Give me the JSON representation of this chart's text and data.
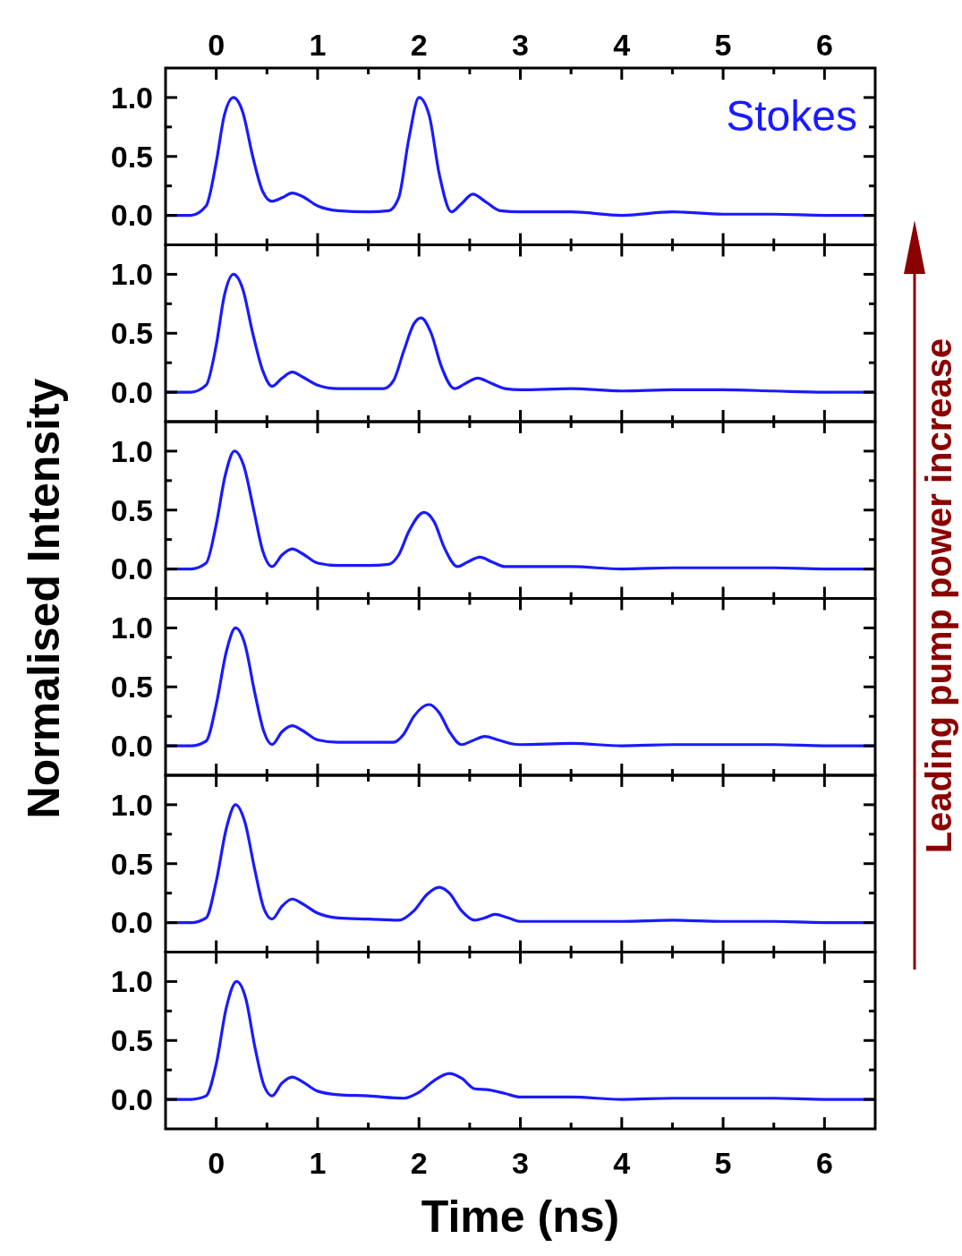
{
  "chart_data": [
    {
      "type": "line",
      "ylabel": "Normalised Intensity",
      "legend": "top right",
      "annotations": [
        "Leading pump power increase"
      ],
      "xlim": [
        -0.5,
        6.5
      ],
      "xticks": [
        0,
        {
          "value": 0.5,
          "label": null
        },
        1,
        {
          "value": 1.5,
          "label": null
        },
        2,
        {
          "value": 2.5,
          "label": null
        },
        3,
        {
          "value": 3.5,
          "label": null
        },
        4,
        {
          "value": 4.5,
          "label": null
        },
        5,
        {
          "value": 5.5,
          "label": null
        },
        6
      ],
      "x2lim": [
        -0.5,
        6.5
      ],
      "x2ticks": [
        0,
        1,
        2,
        3,
        4,
        5,
        6
      ],
      "ylim": [
        -0.25,
        1.25
      ],
      "yticks": [
        {
          "value": 0,
          "label": "0.0"
        },
        {
          "value": 0.25,
          "label": null
        },
        {
          "value": 0.5,
          "label": "0.5"
        },
        {
          "value": 0.75,
          "label": null
        },
        {
          "value": 1,
          "label": "1.0"
        }
      ],
      "tick_labels": "y",
      "series": [
        {
          "name": "Stokes",
          "color": "#1a1aff",
          "x": [
            -0.5,
            -0.25,
            -0.1,
            0,
            0.08,
            0.17,
            0.26,
            0.36,
            0.46,
            0.55,
            0.65,
            0.75,
            0.85,
            1.0,
            1.2,
            1.5,
            1.7,
            1.8,
            1.9,
            2.0,
            2.1,
            2.2,
            2.32,
            2.42,
            2.53,
            2.65,
            2.8,
            3.0,
            3.5,
            4.0,
            4.5,
            5.0,
            5.5,
            6.0,
            6.5
          ],
          "values": [
            0,
            0,
            0.08,
            0.45,
            0.85,
            1.0,
            0.88,
            0.5,
            0.2,
            0.12,
            0.15,
            0.19,
            0.16,
            0.08,
            0.04,
            0.03,
            0.04,
            0.15,
            0.65,
            1.0,
            0.85,
            0.35,
            0.03,
            0.1,
            0.18,
            0.12,
            0.04,
            0.03,
            0.03,
            0.0,
            0.03,
            0.01,
            0.01,
            0.0,
            0.0
          ]
        }
      ]
    },
    {
      "type": "line",
      "xlim": [
        -0.5,
        6.5
      ],
      "xticks": [
        0,
        {
          "value": 0.5,
          "label": null
        },
        1,
        {
          "value": 1.5,
          "label": null
        },
        2,
        {
          "value": 2.5,
          "label": null
        },
        3,
        {
          "value": 3.5,
          "label": null
        },
        4,
        {
          "value": 4.5,
          "label": null
        },
        5,
        {
          "value": 5.5,
          "label": null
        },
        6
      ],
      "ylim": [
        -0.25,
        1.25
      ],
      "yticks": [
        {
          "value": 0,
          "label": "0.0"
        },
        {
          "value": 0.25,
          "label": null
        },
        {
          "value": 0.5,
          "label": "0.5"
        },
        {
          "value": 0.75,
          "label": null
        },
        {
          "value": 1,
          "label": "1.0"
        }
      ],
      "tick_labels": "y",
      "series": [
        {
          "color": "#1a1aff",
          "x": [
            -0.5,
            -0.25,
            -0.1,
            0,
            0.08,
            0.17,
            0.26,
            0.36,
            0.46,
            0.55,
            0.65,
            0.75,
            0.85,
            1.0,
            1.2,
            1.5,
            1.65,
            1.75,
            1.85,
            1.95,
            2.02,
            2.12,
            2.22,
            2.35,
            2.45,
            2.58,
            2.7,
            2.85,
            3.0,
            3.5,
            4.0,
            4.5,
            5.0,
            5.5,
            6.0,
            6.5
          ],
          "values": [
            0,
            0,
            0.06,
            0.4,
            0.82,
            1.0,
            0.88,
            0.5,
            0.18,
            0.05,
            0.12,
            0.17,
            0.13,
            0.06,
            0.03,
            0.03,
            0.03,
            0.1,
            0.35,
            0.58,
            0.63,
            0.5,
            0.22,
            0.03,
            0.07,
            0.12,
            0.08,
            0.03,
            0.02,
            0.03,
            0.01,
            0.02,
            0.02,
            0.01,
            0.0,
            0.0
          ]
        }
      ]
    },
    {
      "type": "line",
      "xlim": [
        -0.5,
        6.5
      ],
      "xticks": [
        0,
        {
          "value": 0.5,
          "label": null
        },
        1,
        {
          "value": 1.5,
          "label": null
        },
        2,
        {
          "value": 2.5,
          "label": null
        },
        3,
        {
          "value": 3.5,
          "label": null
        },
        4,
        {
          "value": 4.5,
          "label": null
        },
        5,
        {
          "value": 5.5,
          "label": null
        },
        6
      ],
      "ylim": [
        -0.25,
        1.25
      ],
      "yticks": [
        {
          "value": 0,
          "label": "0.0"
        },
        {
          "value": 0.25,
          "label": null
        },
        {
          "value": 0.5,
          "label": "0.5"
        },
        {
          "value": 0.75,
          "label": null
        },
        {
          "value": 1,
          "label": "1.0"
        }
      ],
      "tick_labels": "y",
      "series": [
        {
          "color": "#1a1aff",
          "x": [
            -0.5,
            -0.25,
            -0.1,
            0,
            0.09,
            0.18,
            0.27,
            0.37,
            0.46,
            0.55,
            0.65,
            0.75,
            0.85,
            1.0,
            1.2,
            1.5,
            1.7,
            1.8,
            1.9,
            2.05,
            2.15,
            2.25,
            2.38,
            2.48,
            2.6,
            2.72,
            2.85,
            3.0,
            3.5,
            4.0,
            4.5,
            5.0,
            5.5,
            6.0,
            6.5
          ],
          "values": [
            0,
            0,
            0.05,
            0.38,
            0.8,
            1.0,
            0.88,
            0.5,
            0.15,
            0.02,
            0.12,
            0.17,
            0.13,
            0.05,
            0.03,
            0.03,
            0.04,
            0.12,
            0.32,
            0.48,
            0.4,
            0.18,
            0.02,
            0.06,
            0.1,
            0.06,
            0.02,
            0.02,
            0.02,
            0.0,
            0.01,
            0.01,
            0.01,
            0.0,
            0.0
          ]
        }
      ]
    },
    {
      "type": "line",
      "xlim": [
        -0.5,
        6.5
      ],
      "xticks": [
        0,
        {
          "value": 0.5,
          "label": null
        },
        1,
        {
          "value": 1.5,
          "label": null
        },
        2,
        {
          "value": 2.5,
          "label": null
        },
        3,
        {
          "value": 3.5,
          "label": null
        },
        4,
        {
          "value": 4.5,
          "label": null
        },
        5,
        {
          "value": 5.5,
          "label": null
        },
        6
      ],
      "ylim": [
        -0.25,
        1.25
      ],
      "yticks": [
        {
          "value": 0,
          "label": "0.0"
        },
        {
          "value": 0.25,
          "label": null
        },
        {
          "value": 0.5,
          "label": "0.5"
        },
        {
          "value": 0.75,
          "label": null
        },
        {
          "value": 1,
          "label": "1.0"
        }
      ],
      "tick_labels": "y",
      "series": [
        {
          "color": "#1a1aff",
          "x": [
            -0.5,
            -0.25,
            -0.1,
            0,
            0.1,
            0.19,
            0.28,
            0.38,
            0.47,
            0.55,
            0.65,
            0.75,
            0.85,
            1.0,
            1.2,
            1.5,
            1.75,
            1.85,
            1.95,
            2.1,
            2.2,
            2.3,
            2.42,
            2.52,
            2.65,
            2.78,
            2.9,
            3.0,
            3.5,
            4.0,
            4.5,
            5.0,
            5.5,
            6.0,
            6.5
          ],
          "values": [
            0,
            0,
            0.04,
            0.35,
            0.8,
            1.0,
            0.87,
            0.45,
            0.12,
            0.01,
            0.12,
            0.17,
            0.13,
            0.05,
            0.03,
            0.03,
            0.03,
            0.1,
            0.25,
            0.35,
            0.28,
            0.12,
            0.01,
            0.04,
            0.08,
            0.05,
            0.02,
            0.01,
            0.02,
            0.0,
            0.01,
            0.01,
            0.01,
            0.0,
            0.0
          ]
        }
      ]
    },
    {
      "type": "line",
      "xlim": [
        -0.5,
        6.5
      ],
      "xticks": [
        0,
        {
          "value": 0.5,
          "label": null
        },
        1,
        {
          "value": 1.5,
          "label": null
        },
        2,
        {
          "value": 2.5,
          "label": null
        },
        3,
        {
          "value": 3.5,
          "label": null
        },
        4,
        {
          "value": 4.5,
          "label": null
        },
        5,
        {
          "value": 5.5,
          "label": null
        },
        6
      ],
      "ylim": [
        -0.25,
        1.25
      ],
      "yticks": [
        {
          "value": 0,
          "label": "0.0"
        },
        {
          "value": 0.25,
          "label": null
        },
        {
          "value": 0.5,
          "label": "0.5"
        },
        {
          "value": 0.75,
          "label": null
        },
        {
          "value": 1,
          "label": "1.0"
        }
      ],
      "tick_labels": "y",
      "series": [
        {
          "color": "#1a1aff",
          "x": [
            -0.5,
            -0.25,
            -0.1,
            0,
            0.1,
            0.19,
            0.28,
            0.38,
            0.47,
            0.55,
            0.65,
            0.75,
            0.85,
            1.0,
            1.2,
            1.5,
            1.8,
            1.95,
            2.08,
            2.2,
            2.3,
            2.42,
            2.55,
            2.65,
            2.75,
            2.88,
            3.0,
            3.5,
            4.0,
            4.5,
            5.0,
            5.5,
            6.0,
            6.5
          ],
          "values": [
            0,
            0,
            0.04,
            0.35,
            0.8,
            1.0,
            0.86,
            0.45,
            0.12,
            0.03,
            0.14,
            0.2,
            0.16,
            0.08,
            0.04,
            0.03,
            0.02,
            0.1,
            0.24,
            0.3,
            0.25,
            0.1,
            0.02,
            0.04,
            0.07,
            0.04,
            0.01,
            0.01,
            0.01,
            0.02,
            0.01,
            0.01,
            0.0,
            0.0
          ]
        }
      ]
    },
    {
      "type": "line",
      "xlabel": "Time (ns)",
      "xlim": [
        -0.5,
        6.5
      ],
      "xticks": [
        0,
        {
          "value": 0.5,
          "label": null
        },
        1,
        {
          "value": 1.5,
          "label": null
        },
        2,
        {
          "value": 2.5,
          "label": null
        },
        3,
        {
          "value": 3.5,
          "label": null
        },
        4,
        {
          "value": 4.5,
          "label": null
        },
        5,
        {
          "value": 5.5,
          "label": null
        },
        6
      ],
      "ylim": [
        -0.25,
        1.25
      ],
      "yticks": [
        {
          "value": 0,
          "label": "0.0"
        },
        {
          "value": 0.25,
          "label": null
        },
        {
          "value": 0.5,
          "label": "0.5"
        },
        {
          "value": 0.75,
          "label": null
        },
        {
          "value": 1,
          "label": "1.0"
        }
      ],
      "series": [
        {
          "color": "#1a1aff",
          "x": [
            -0.5,
            -0.25,
            -0.1,
            0,
            0.1,
            0.2,
            0.29,
            0.38,
            0.47,
            0.55,
            0.65,
            0.75,
            0.85,
            1.0,
            1.2,
            1.5,
            1.85,
            2.0,
            2.15,
            2.3,
            2.42,
            2.55,
            2.7,
            2.85,
            3.0,
            3.5,
            4.0,
            4.5,
            5.0,
            5.5,
            6.0,
            6.5
          ],
          "values": [
            0,
            0,
            0.03,
            0.3,
            0.78,
            1.0,
            0.86,
            0.45,
            0.12,
            0.03,
            0.14,
            0.19,
            0.15,
            0.07,
            0.04,
            0.03,
            0.01,
            0.06,
            0.16,
            0.22,
            0.18,
            0.09,
            0.08,
            0.05,
            0.02,
            0.02,
            0.0,
            0.01,
            0.01,
            0.01,
            0.0,
            0.0
          ]
        }
      ]
    }
  ]
}
